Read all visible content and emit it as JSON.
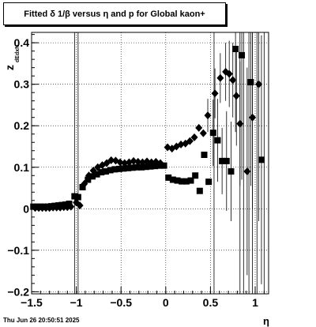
{
  "chart_data": {
    "type": "scatter",
    "title": "Fitted δ 1/β  versus η and p for Global kaon+",
    "xlabel": "η",
    "ylabel": "z",
    "ylabel_sub": "dEdxN",
    "xlim": [
      -1.5,
      1.15
    ],
    "ylim": [
      -0.205,
      0.425
    ],
    "grid": true,
    "x_ticks": [
      {
        "v": -1.5,
        "label": "−1.5"
      },
      {
        "v": -1.0,
        "label": "−1"
      },
      {
        "v": -0.5,
        "label": "−0.5"
      },
      {
        "v": 0.0,
        "label": "0"
      },
      {
        "v": 0.5,
        "label": "0.5"
      },
      {
        "v": 1.0,
        "label": "1"
      }
    ],
    "y_ticks": [
      {
        "v": -0.2,
        "label": "−0.2"
      },
      {
        "v": -0.1,
        "label": "−0.1"
      },
      {
        "v": 0.0,
        "label": "0"
      },
      {
        "v": 0.1,
        "label": "0.1"
      },
      {
        "v": 0.2,
        "label": "0.2"
      },
      {
        "v": 0.3,
        "label": "0.3"
      },
      {
        "v": 0.4,
        "label": "0.4"
      }
    ],
    "vlines": [
      -1.02,
      -0.98,
      0.54,
      0.83,
      0.87,
      0.93,
      0.97,
      1.02,
      1.1
    ],
    "series": [
      {
        "marker": "square",
        "points": [
          [
            -1.48,
            0.005
          ],
          [
            -1.44,
            0.005
          ],
          [
            -1.4,
            0.005
          ],
          [
            -1.36,
            0.005
          ],
          [
            -1.32,
            0.005
          ],
          [
            -1.28,
            0.006
          ],
          [
            -1.24,
            0.007
          ],
          [
            -1.2,
            0.008
          ],
          [
            -1.16,
            0.009
          ],
          [
            -1.12,
            0.01
          ],
          [
            -1.08,
            0.012
          ],
          [
            -1.02,
            0.03
          ],
          [
            -0.98,
            0.028
          ],
          [
            -0.93,
            0.052
          ],
          [
            -0.87,
            0.07
          ],
          [
            -0.82,
            0.078
          ],
          [
            -0.77,
            0.083
          ],
          [
            -0.72,
            0.088
          ],
          [
            -0.67,
            0.09
          ],
          [
            -0.62,
            0.093
          ],
          [
            -0.57,
            0.095
          ],
          [
            -0.52,
            0.096
          ],
          [
            -0.47,
            0.097
          ],
          [
            -0.42,
            0.098
          ],
          [
            -0.37,
            0.099
          ],
          [
            -0.32,
            0.1
          ],
          [
            -0.27,
            0.1
          ],
          [
            -0.22,
            0.101
          ],
          [
            -0.17,
            0.102
          ],
          [
            -0.12,
            0.103
          ],
          [
            -0.07,
            0.104
          ],
          [
            -0.02,
            0.104
          ],
          [
            0.03,
            0.075
          ],
          [
            0.08,
            0.07
          ],
          [
            0.13,
            0.068
          ],
          [
            0.18,
            0.066
          ],
          [
            0.23,
            0.066
          ],
          [
            0.28,
            0.068
          ],
          [
            0.33,
            0.08
          ],
          [
            0.38,
            0.043
          ],
          [
            0.43,
            0.13
          ],
          [
            0.48,
            0.065
          ],
          [
            0.53,
            0.183
          ],
          [
            0.58,
            0.165
          ],
          [
            0.63,
            0.115
          ],
          [
            0.68,
            0.115
          ],
          [
            0.73,
            0.09
          ],
          [
            0.78,
            0.385
          ],
          [
            0.85,
            0.37
          ],
          [
            0.95,
            0.305
          ],
          [
            1.07,
            0.118
          ]
        ],
        "errors": [
          [
            0.53,
            0.08
          ],
          [
            0.58,
            0.1
          ],
          [
            0.63,
            0.08
          ],
          [
            0.68,
            0.12
          ],
          [
            0.73,
            0.12
          ],
          [
            0.78,
            0.2
          ],
          [
            0.85,
            0.3
          ],
          [
            0.95,
            0.25
          ],
          [
            1.07,
            0.3
          ]
        ]
      },
      {
        "marker": "diamond",
        "points": [
          [
            -1.46,
            0.002
          ],
          [
            -1.42,
            0.002
          ],
          [
            -1.38,
            0.002
          ],
          [
            -1.34,
            0.002
          ],
          [
            -1.3,
            0.002
          ],
          [
            -1.26,
            0.003
          ],
          [
            -1.22,
            0.003
          ],
          [
            -1.18,
            0.003
          ],
          [
            -1.14,
            0.004
          ],
          [
            -1.1,
            0.004
          ],
          [
            -1.06,
            0.005
          ],
          [
            -1.0,
            0.015
          ],
          [
            -0.96,
            0.008
          ],
          [
            -0.91,
            0.06
          ],
          [
            -0.86,
            0.08
          ],
          [
            -0.81,
            0.092
          ],
          [
            -0.76,
            0.1
          ],
          [
            -0.71,
            0.105
          ],
          [
            -0.66,
            0.11
          ],
          [
            -0.61,
            0.117
          ],
          [
            -0.56,
            0.116
          ],
          [
            -0.51,
            0.112
          ],
          [
            -0.46,
            0.11
          ],
          [
            -0.41,
            0.112
          ],
          [
            -0.36,
            0.115
          ],
          [
            -0.31,
            0.113
          ],
          [
            -0.26,
            0.112
          ],
          [
            -0.21,
            0.114
          ],
          [
            -0.16,
            0.112
          ],
          [
            -0.11,
            0.113
          ],
          [
            -0.06,
            0.11
          ],
          [
            0.02,
            0.148
          ],
          [
            0.07,
            0.145
          ],
          [
            0.12,
            0.15
          ],
          [
            0.17,
            0.155
          ],
          [
            0.22,
            0.157
          ],
          [
            0.27,
            0.163
          ],
          [
            0.32,
            0.172
          ],
          [
            0.37,
            0.195
          ],
          [
            0.42,
            0.182
          ],
          [
            0.47,
            0.225
          ],
          [
            0.55,
            0.278
          ],
          [
            0.61,
            0.315
          ],
          [
            0.67,
            0.33
          ],
          [
            0.71,
            0.325
          ],
          [
            0.75,
            0.31
          ],
          [
            0.79,
            0.272
          ],
          [
            0.83,
            0.205
          ],
          [
            0.91,
            0.09
          ],
          [
            0.97,
            0.22
          ],
          [
            1.04,
            0.3
          ]
        ],
        "errors": [
          [
            0.47,
            0.04
          ],
          [
            0.55,
            0.06
          ],
          [
            0.61,
            0.06
          ],
          [
            0.67,
            0.07
          ],
          [
            0.71,
            0.08
          ],
          [
            0.75,
            0.09
          ],
          [
            0.79,
            0.12
          ],
          [
            0.83,
            0.15
          ],
          [
            0.91,
            0.25
          ],
          [
            0.97,
            0.22
          ],
          [
            1.04,
            0.33
          ]
        ]
      }
    ]
  },
  "footer": "Thu Jun 26 20:50:51 2025"
}
